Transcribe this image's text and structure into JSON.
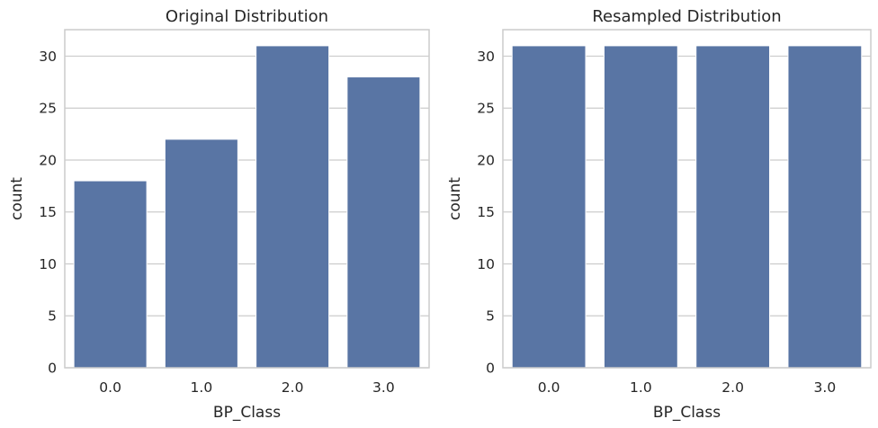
{
  "chart_data": [
    {
      "type": "bar",
      "title": "Original Distribution",
      "xlabel": "BP_Class",
      "ylabel": "count",
      "categories": [
        "0.0",
        "1.0",
        "2.0",
        "3.0"
      ],
      "values": [
        18,
        22,
        31,
        28
      ],
      "ylim": [
        0,
        32.55
      ],
      "yticks": [
        0,
        5,
        10,
        15,
        20,
        25,
        30
      ],
      "grid": true,
      "bar_color": "#5975a4",
      "grid_color": "#cccccc",
      "frame_color": "#cccccc"
    },
    {
      "type": "bar",
      "title": "Resampled Distribution",
      "xlabel": "BP_Class",
      "ylabel": "count",
      "categories": [
        "0.0",
        "1.0",
        "2.0",
        "3.0"
      ],
      "values": [
        31,
        31,
        31,
        31
      ],
      "ylim": [
        0,
        32.55
      ],
      "yticks": [
        0,
        5,
        10,
        15,
        20,
        25,
        30
      ],
      "grid": true,
      "bar_color": "#5975a4",
      "grid_color": "#cccccc",
      "frame_color": "#cccccc"
    }
  ]
}
